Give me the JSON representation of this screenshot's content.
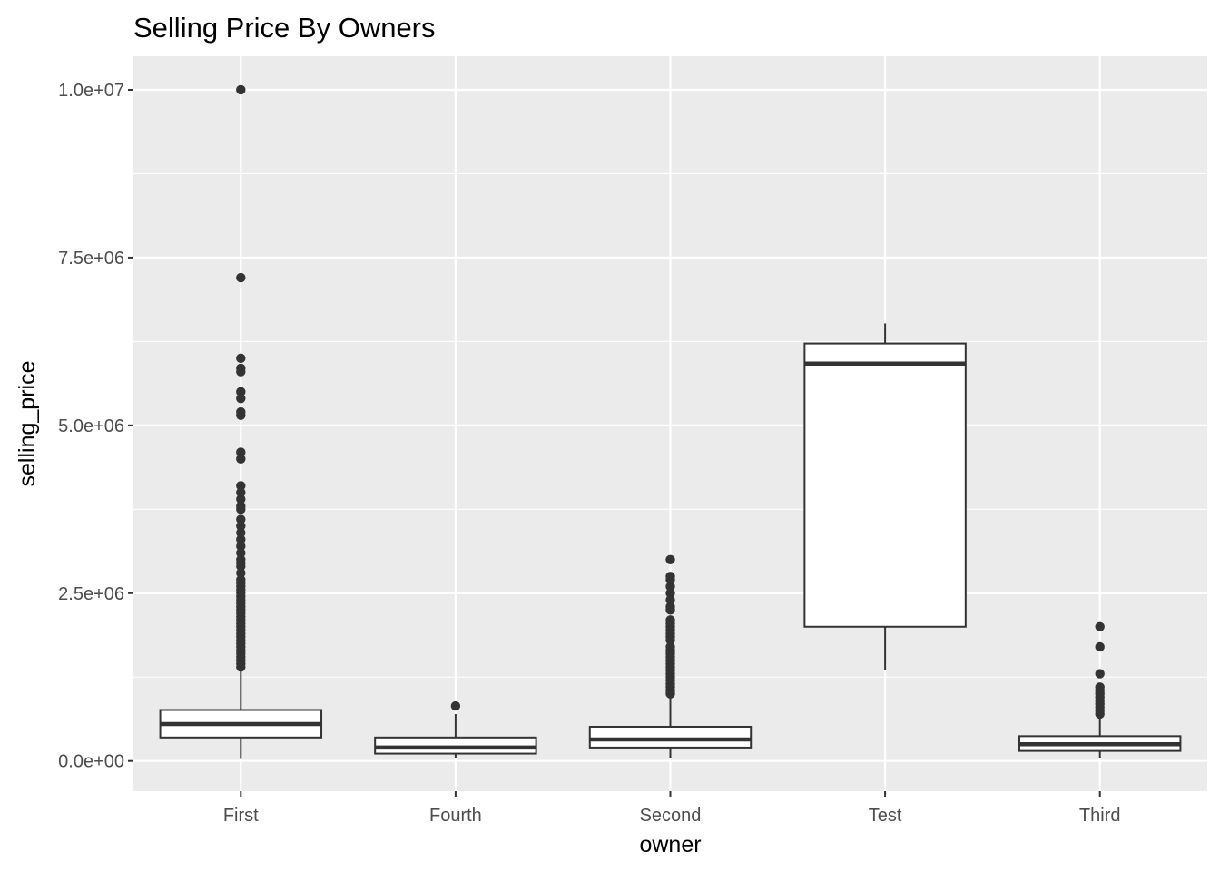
{
  "chart_data": {
    "type": "boxplot",
    "title": "Selling Price By Owners",
    "xlabel": "owner",
    "ylabel": "selling_price",
    "ylim": [
      -450000,
      10500000
    ],
    "y_ticks": [
      0,
      2500000,
      5000000,
      7500000,
      10000000
    ],
    "y_tick_labels": [
      "0.0e+00",
      "2.5e+06",
      "5.0e+06",
      "7.5e+06",
      "1.0e+07"
    ],
    "categories": [
      "First",
      "Fourth",
      "Second",
      "Test",
      "Third"
    ],
    "grid": true,
    "legend": "none",
    "colors": {
      "panel": "#ebebeb",
      "grid": "#ffffff",
      "box_fill": "#ffffff",
      "box_line": "#333333"
    },
    "boxes": [
      {
        "category": "First",
        "whisker_low": 30000,
        "q1": 350000,
        "median": 550000,
        "q3": 760000,
        "whisker_high": 1380000,
        "outliers": [
          10000000,
          7200000,
          6000000,
          5850000,
          5800000,
          5500000,
          5400000,
          5200000,
          5150000,
          4600000,
          4500000,
          4100000,
          4000000,
          3900000,
          3800000,
          3750000,
          3600000,
          3500000,
          3400000,
          3300000,
          3200000,
          3100000,
          3000000,
          2950000,
          2900000,
          2800000,
          2700000,
          2650000,
          2600000,
          2550000,
          2500000,
          2450000,
          2400000,
          2350000,
          2300000,
          2250000,
          2200000,
          2150000,
          2100000,
          2050000,
          2000000,
          1950000,
          1900000,
          1850000,
          1800000,
          1750000,
          1700000,
          1650000,
          1600000,
          1550000,
          1500000,
          1450000,
          1400000
        ]
      },
      {
        "category": "Fourth",
        "whisker_low": 50000,
        "q1": 110000,
        "median": 200000,
        "q3": 350000,
        "whisker_high": 700000,
        "outliers": [
          820000
        ]
      },
      {
        "category": "Second",
        "whisker_low": 40000,
        "q1": 200000,
        "median": 320000,
        "q3": 510000,
        "whisker_high": 990000,
        "outliers": [
          3000000,
          2750000,
          2700000,
          2600000,
          2500000,
          2400000,
          2300000,
          2250000,
          2100000,
          2050000,
          2000000,
          1950000,
          1900000,
          1850000,
          1800000,
          1700000,
          1650000,
          1600000,
          1550000,
          1500000,
          1450000,
          1400000,
          1350000,
          1300000,
          1250000,
          1200000,
          1150000,
          1100000,
          1050000,
          1000000
        ]
      },
      {
        "category": "Test",
        "whisker_low": 1350000,
        "q1": 2000000,
        "median": 5920000,
        "q3": 6220000,
        "whisker_high": 6520000,
        "outliers": []
      },
      {
        "category": "Third",
        "whisker_low": 40000,
        "q1": 150000,
        "median": 250000,
        "q3": 370000,
        "whisker_high": 650000,
        "outliers": [
          2000000,
          1700000,
          1300000,
          1100000,
          1050000,
          1000000,
          950000,
          900000,
          850000,
          800000,
          750000,
          700000
        ]
      }
    ]
  }
}
